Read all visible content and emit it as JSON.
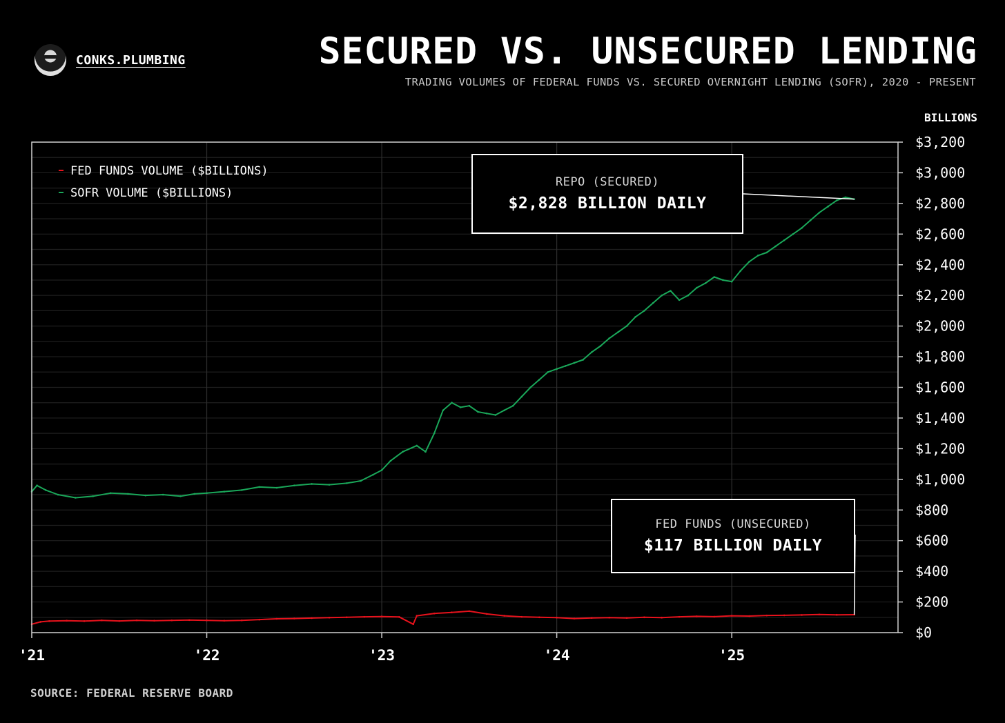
{
  "brand": {
    "name": "CONKS.PLUMBING"
  },
  "header": {
    "title": "SECURED VS. UNSECURED LENDING",
    "subtitle": "TRADING VOLUMES OF FEDERAL FUNDS VS. SECURED OVERNIGHT LENDING (SOFR), 2020 - PRESENT"
  },
  "footer": {
    "source": "SOURCE: FEDERAL RESERVE BOARD"
  },
  "annotations": {
    "repo": {
      "label": "REPO (SECURED)",
      "value": "$2,828 BILLION DAILY"
    },
    "fed_funds": {
      "label": "FED FUNDS (UNSECURED)",
      "value": "$117 BILLION DAILY"
    }
  },
  "colors": {
    "background": "#000000",
    "fed_funds": "#e8121c",
    "sofr": "#1aa85a",
    "grid": "#2e2e2e"
  },
  "chart_data": {
    "type": "line",
    "title": "SECURED VS. UNSECURED LENDING",
    "ylabel": "BILLIONS",
    "xlabel": "",
    "xlim": [
      2021.0,
      2025.95
    ],
    "ylim": [
      0,
      3200
    ],
    "y_ticks": [
      0,
      200,
      400,
      600,
      800,
      1000,
      1200,
      1400,
      1600,
      1800,
      2000,
      2200,
      2400,
      2600,
      2800,
      3000,
      3200
    ],
    "y_tick_labels": [
      "$0",
      "$200",
      "$400",
      "$600",
      "$800",
      "$1,000",
      "$1,200",
      "$1,400",
      "$1,600",
      "$1,800",
      "$2,000",
      "$2,200",
      "$2,400",
      "$2,600",
      "$2,800",
      "$3,000",
      "$3,200"
    ],
    "x_ticks": [
      2021,
      2022,
      2023,
      2024,
      2025
    ],
    "x_tick_labels": [
      "'21",
      "'22",
      "'23",
      "'24",
      "'25"
    ],
    "grid": true,
    "legend_position": "top-left",
    "series": [
      {
        "name": "FED FUNDS VOLUME ($BILLIONS)",
        "color": "#e8121c",
        "x": [
          2021.0,
          2021.05,
          2021.1,
          2021.2,
          2021.3,
          2021.4,
          2021.5,
          2021.6,
          2021.7,
          2021.8,
          2021.9,
          2022.0,
          2022.1,
          2022.2,
          2022.3,
          2022.4,
          2022.5,
          2022.6,
          2022.7,
          2022.8,
          2022.9,
          2023.0,
          2023.1,
          2023.18,
          2023.2,
          2023.3,
          2023.4,
          2023.5,
          2023.6,
          2023.7,
          2023.8,
          2023.9,
          2024.0,
          2024.1,
          2024.2,
          2024.3,
          2024.4,
          2024.5,
          2024.6,
          2024.7,
          2024.8,
          2024.9,
          2025.0,
          2025.1,
          2025.2,
          2025.3,
          2025.4,
          2025.5,
          2025.6,
          2025.7
        ],
        "values": [
          55,
          70,
          75,
          78,
          75,
          80,
          76,
          80,
          78,
          80,
          82,
          80,
          78,
          80,
          85,
          90,
          92,
          95,
          98,
          100,
          103,
          105,
          102,
          55,
          110,
          125,
          132,
          140,
          122,
          110,
          103,
          100,
          98,
          92,
          96,
          98,
          96,
          100,
          98,
          103,
          106,
          104,
          110,
          108,
          112,
          113,
          115,
          118,
          116,
          117
        ]
      },
      {
        "name": "SOFR VOLUME ($BILLIONS)",
        "color": "#1aa85a",
        "x": [
          2021.0,
          2021.03,
          2021.08,
          2021.15,
          2021.25,
          2021.35,
          2021.45,
          2021.55,
          2021.65,
          2021.75,
          2021.85,
          2021.93,
          2022.0,
          2022.1,
          2022.2,
          2022.3,
          2022.4,
          2022.5,
          2022.6,
          2022.7,
          2022.8,
          2022.88,
          2022.95,
          2023.0,
          2023.05,
          2023.12,
          2023.2,
          2023.25,
          2023.3,
          2023.35,
          2023.4,
          2023.45,
          2023.5,
          2023.55,
          2023.6,
          2023.65,
          2023.7,
          2023.75,
          2023.8,
          2023.85,
          2023.9,
          2023.95,
          2024.0,
          2024.05,
          2024.1,
          2024.15,
          2024.2,
          2024.25,
          2024.3,
          2024.35,
          2024.4,
          2024.45,
          2024.5,
          2024.55,
          2024.6,
          2024.65,
          2024.7,
          2024.75,
          2024.8,
          2024.85,
          2024.9,
          2024.95,
          2025.0,
          2025.05,
          2025.1,
          2025.15,
          2025.2,
          2025.25,
          2025.3,
          2025.35,
          2025.4,
          2025.45,
          2025.5,
          2025.55,
          2025.6,
          2025.65,
          2025.7
        ],
        "values": [
          920,
          960,
          930,
          900,
          880,
          890,
          910,
          905,
          895,
          900,
          890,
          905,
          910,
          920,
          930,
          950,
          945,
          960,
          970,
          965,
          975,
          990,
          1030,
          1060,
          1120,
          1180,
          1220,
          1180,
          1300,
          1450,
          1500,
          1470,
          1480,
          1440,
          1430,
          1420,
          1450,
          1480,
          1540,
          1600,
          1650,
          1700,
          1720,
          1740,
          1760,
          1780,
          1830,
          1870,
          1920,
          1960,
          2000,
          2060,
          2100,
          2150,
          2200,
          2230,
          2170,
          2200,
          2250,
          2280,
          2320,
          2300,
          2290,
          2360,
          2420,
          2460,
          2480,
          2520,
          2560,
          2600,
          2640,
          2690,
          2740,
          2780,
          2820,
          2840,
          2828
        ]
      }
    ]
  }
}
